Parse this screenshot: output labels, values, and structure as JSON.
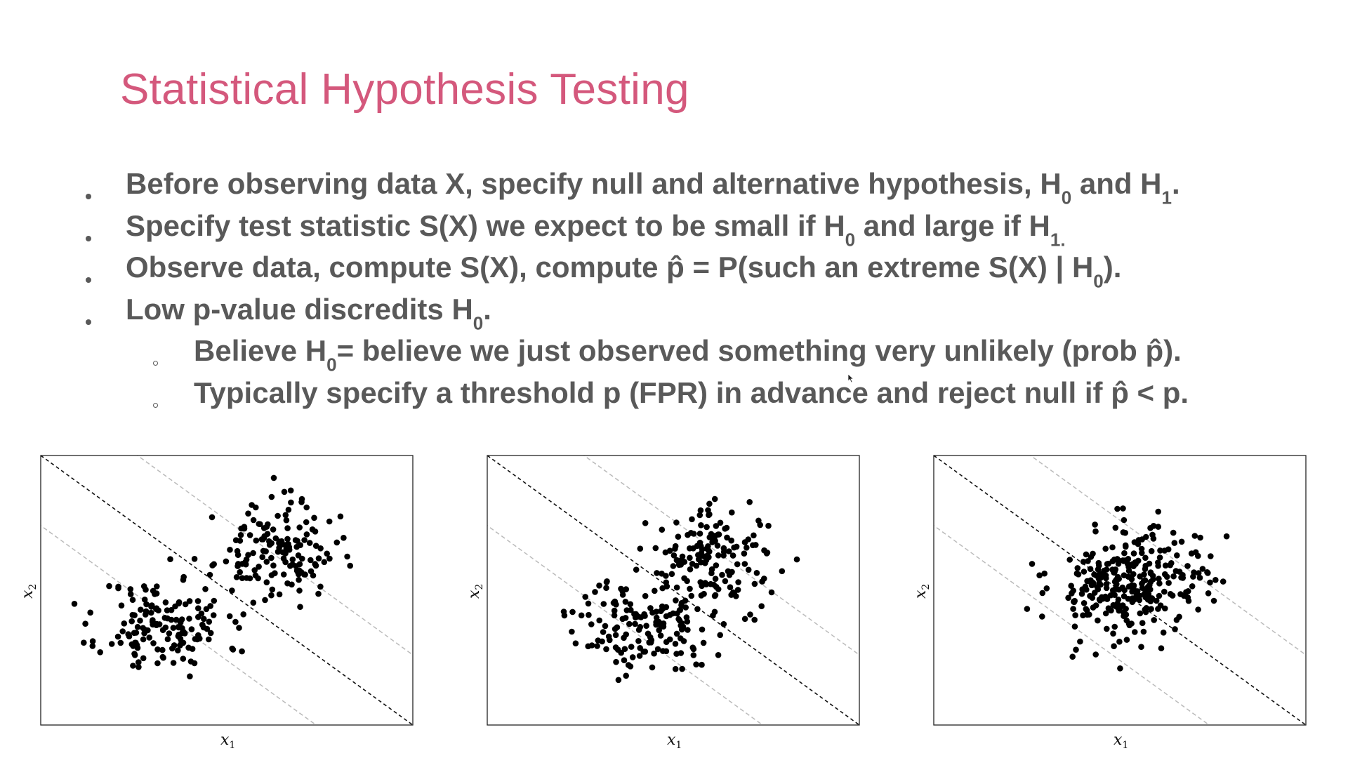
{
  "slide": {
    "title": "Statistical Hypothesis Testing",
    "bullets": [
      {
        "level": 1,
        "segments": [
          {
            "t": "Before observing data X, specify null and alternative hypothesis, H"
          },
          {
            "t": "0",
            "sub": true
          },
          {
            "t": " and H"
          },
          {
            "t": "1",
            "sub": true
          },
          {
            "t": "."
          }
        ]
      },
      {
        "level": 1,
        "segments": [
          {
            "t": "Specify test statistic S(X) we expect to be small if H"
          },
          {
            "t": "0",
            "sub": true
          },
          {
            "t": " and large if H"
          },
          {
            "t": "1.",
            "sub": true
          }
        ]
      },
      {
        "level": 1,
        "segments": [
          {
            "t": "Observe data, compute S(X), compute p̂ = P(such an extreme S(X) | H"
          },
          {
            "t": "0",
            "sub": true
          },
          {
            "t": ")."
          }
        ]
      },
      {
        "level": 1,
        "segments": [
          {
            "t": "Low p-value discredits H"
          },
          {
            "t": "0",
            "sub": true
          },
          {
            "t": "."
          }
        ]
      },
      {
        "level": 2,
        "segments": [
          {
            "t": "Believe H"
          },
          {
            "t": "0",
            "sub": true
          },
          {
            "t": "= believe we just observed something very unlikely (prob p̂)."
          }
        ]
      },
      {
        "level": 2,
        "segments": [
          {
            "t": "Typically specify a threshold p (FPR) in advance and reject null if p̂ < p."
          }
        ]
      }
    ]
  },
  "chart_data": [
    {
      "type": "scatter",
      "xlabel": "x",
      "xlabel_sub": "1",
      "ylabel": "x",
      "ylabel_sub": "2",
      "grid": false,
      "ticks": false,
      "clusters": [
        {
          "n": 150,
          "mean": [
            0.33,
            0.37
          ],
          "sd": [
            0.085,
            0.09
          ],
          "seed": 11
        },
        {
          "n": 150,
          "mean": [
            0.63,
            0.64
          ],
          "sd": [
            0.08,
            0.09
          ],
          "seed": 23
        }
      ],
      "decision_line": {
        "color": "#111111",
        "style": "dashed"
      },
      "margin_lines": {
        "color": "#bbbbbb",
        "style": "dashed",
        "offset": 0.13
      }
    },
    {
      "type": "scatter",
      "xlabel": "x",
      "xlabel_sub": "1",
      "ylabel": "x",
      "ylabel_sub": "2",
      "grid": false,
      "ticks": false,
      "clusters": [
        {
          "n": 150,
          "mean": [
            0.42,
            0.37
          ],
          "sd": [
            0.09,
            0.085
          ],
          "seed": 37
        },
        {
          "n": 150,
          "mean": [
            0.61,
            0.62
          ],
          "sd": [
            0.085,
            0.09
          ],
          "seed": 41
        }
      ],
      "decision_line": {
        "color": "#111111",
        "style": "dashed"
      },
      "margin_lines": {
        "color": "#bbbbbb",
        "style": "dashed",
        "offset": 0.13
      }
    },
    {
      "type": "scatter",
      "xlabel": "x",
      "xlabel_sub": "1",
      "ylabel": "x",
      "ylabel_sub": "2",
      "grid": false,
      "ticks": false,
      "clusters": [
        {
          "n": 150,
          "mean": [
            0.49,
            0.48
          ],
          "sd": [
            0.09,
            0.095
          ],
          "seed": 53
        },
        {
          "n": 150,
          "mean": [
            0.56,
            0.55
          ],
          "sd": [
            0.09,
            0.095
          ],
          "seed": 67
        }
      ],
      "decision_line": {
        "color": "#111111",
        "style": "dashed"
      },
      "margin_lines": {
        "color": "#bbbbbb",
        "style": "dashed",
        "offset": 0.13
      }
    }
  ]
}
